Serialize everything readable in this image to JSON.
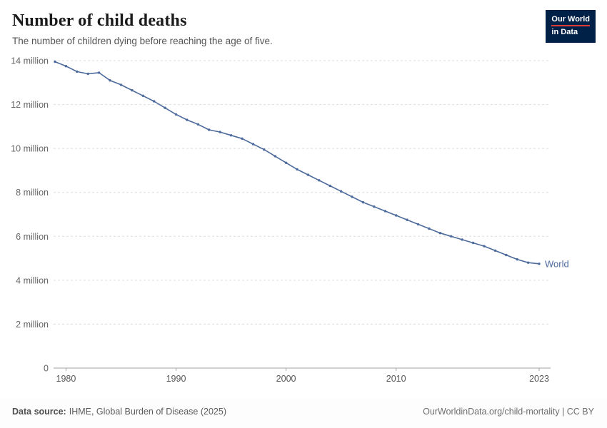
{
  "header": {
    "title": "Number of child deaths",
    "subtitle": "The number of children dying before reaching the age of five.",
    "logo": {
      "line1": "Our World",
      "line2": "in Data",
      "background_color": "#002147",
      "accent_color": "#d73c34"
    }
  },
  "chart_data": {
    "type": "line",
    "title": "Number of child deaths",
    "subtitle": "The number of children dying before reaching the age of five.",
    "unit": "million",
    "x": [
      1979,
      1980,
      1981,
      1982,
      1983,
      1984,
      1985,
      1986,
      1987,
      1988,
      1989,
      1990,
      1991,
      1992,
      1993,
      1994,
      1995,
      1996,
      1997,
      1998,
      1999,
      2000,
      2001,
      2002,
      2003,
      2004,
      2005,
      2006,
      2007,
      2008,
      2009,
      2010,
      2011,
      2012,
      2013,
      2014,
      2015,
      2016,
      2017,
      2018,
      2019,
      2020,
      2021,
      2022,
      2023
    ],
    "series": [
      {
        "name": "World",
        "color": "#4c6a9c",
        "values": [
          13.95,
          13.75,
          13.5,
          13.4,
          13.45,
          13.1,
          12.9,
          12.65,
          12.4,
          12.15,
          11.85,
          11.55,
          11.3,
          11.1,
          10.85,
          10.75,
          10.6,
          10.45,
          10.2,
          9.95,
          9.65,
          9.35,
          9.05,
          8.8,
          8.55,
          8.3,
          8.05,
          7.8,
          7.55,
          7.35,
          7.15,
          6.95,
          6.75,
          6.55,
          6.35,
          6.15,
          6.0,
          5.85,
          5.7,
          5.55,
          5.35,
          5.15,
          4.95,
          4.8,
          4.75
        ]
      }
    ],
    "ylim": [
      0,
      14
    ],
    "yticks": [
      {
        "value": 0,
        "label": "0"
      },
      {
        "value": 2,
        "label": "2 million"
      },
      {
        "value": 4,
        "label": "4 million"
      },
      {
        "value": 6,
        "label": "6 million"
      },
      {
        "value": 8,
        "label": "8 million"
      },
      {
        "value": 10,
        "label": "10 million"
      },
      {
        "value": 12,
        "label": "12 million"
      },
      {
        "value": 14,
        "label": "14 million"
      }
    ],
    "xticks": [
      1980,
      1990,
      2000,
      2010,
      2023
    ],
    "grid": "horizontal-dashed",
    "legend_position": "series-end-label"
  },
  "footer": {
    "source_label": "Data source:",
    "source_value": "IHME, Global Burden of Disease (2025)",
    "credit": "OurWorldinData.org/child-mortality | CC BY"
  }
}
